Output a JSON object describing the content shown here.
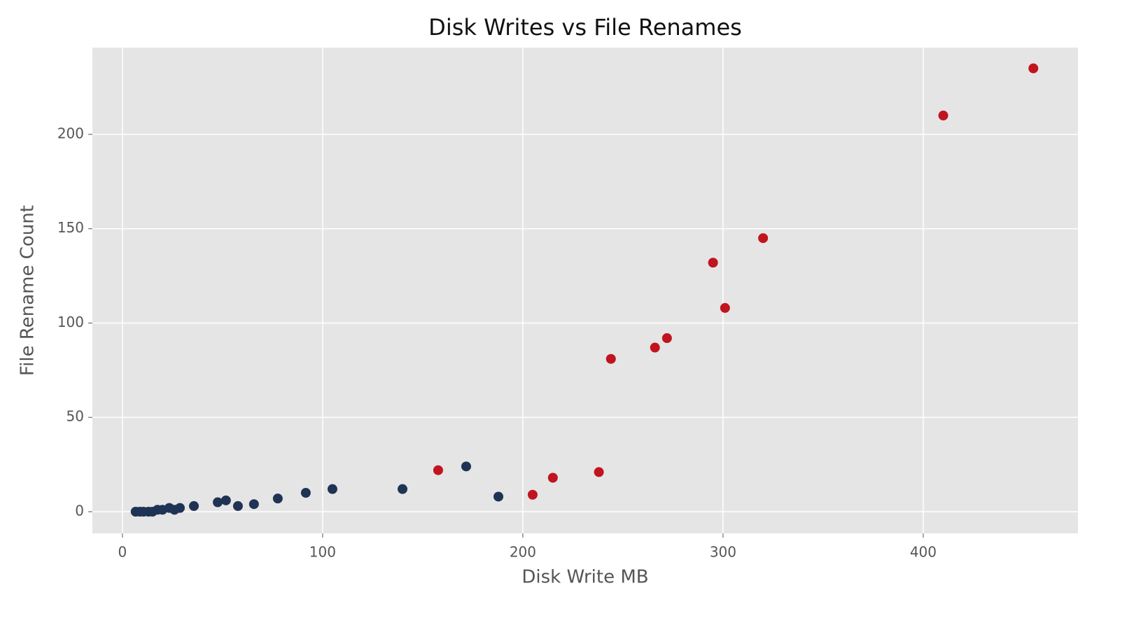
{
  "chart_data": {
    "type": "scatter",
    "title": "Disk Writes vs File Renames",
    "x_label": "Disk Write MB",
    "y_label": "File Rename Count",
    "xlim": [
      -15,
      477.3
    ],
    "ylim": [
      -11.5,
      246
    ],
    "xticks": [
      0,
      100,
      200,
      300,
      400
    ],
    "yticks": [
      0,
      50,
      100,
      150,
      200
    ],
    "grid": true,
    "series": [
      {
        "color": "#1f3354",
        "x": [
          6.6,
          8.7,
          10.5,
          13,
          15,
          17.5,
          20,
          23.4,
          26,
          28.7,
          35.7,
          47.6,
          51.7,
          57.7,
          65.7,
          77.6,
          91.6,
          104.9,
          139.9,
          171.7,
          187.8
        ],
        "values": [
          0,
          0,
          0,
          0,
          0,
          1,
          1,
          2,
          1,
          2,
          3,
          5,
          6,
          3,
          4,
          7,
          10,
          12,
          12,
          24,
          8
        ]
      },
      {
        "color": "#c0141f",
        "x": [
          157.7,
          204.9,
          215,
          238,
          244,
          266,
          272,
          295,
          301,
          320,
          410,
          455
        ],
        "values": [
          22,
          9,
          18,
          21,
          81,
          87,
          92,
          132,
          108,
          145,
          210,
          235
        ]
      }
    ]
  }
}
